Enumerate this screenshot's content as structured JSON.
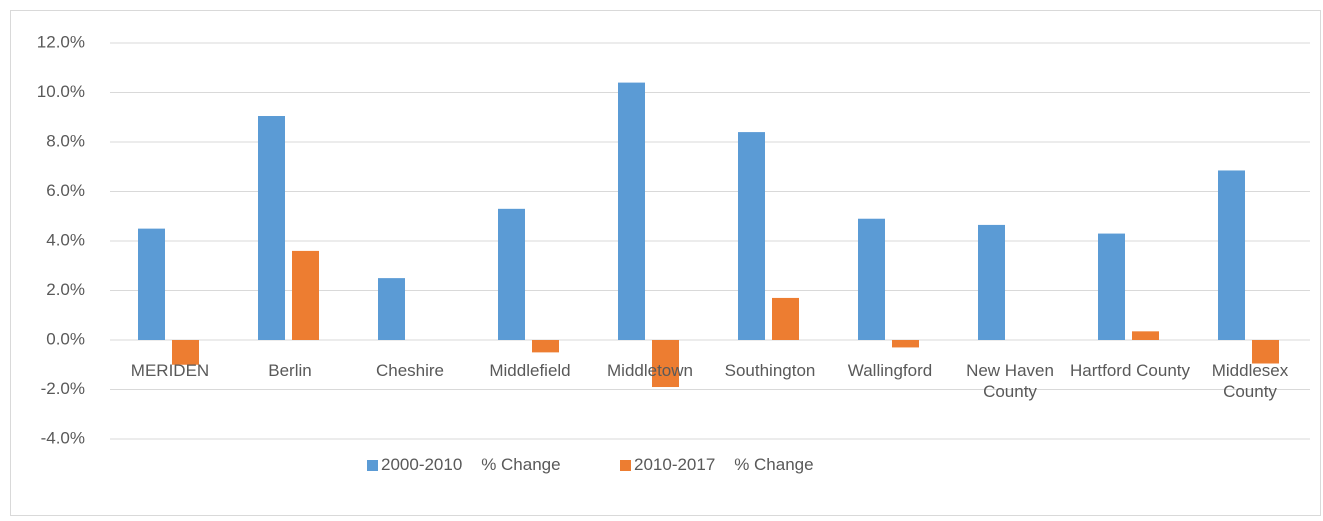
{
  "chart_data": {
    "type": "bar",
    "categories": [
      "MERIDEN",
      "Berlin",
      "Cheshire",
      "Middlefield",
      "Middletown",
      "Southington",
      "Wallingford",
      "New Haven County",
      "Hartford County",
      "Middlesex County"
    ],
    "series": [
      {
        "name": "2000-2010    % Change",
        "color": "#5b9bd5",
        "values": [
          4.5,
          9.05,
          2.5,
          5.3,
          10.4,
          8.4,
          4.9,
          4.65,
          4.3,
          6.85
        ]
      },
      {
        "name": "2010-2017    % Change",
        "color": "#ed7d31",
        "values": [
          -1.0,
          3.6,
          0,
          -0.5,
          -1.9,
          1.7,
          -0.3,
          0,
          0.35,
          -0.95
        ]
      }
    ],
    "ylim": [
      -4,
      12
    ],
    "yticks": [
      {
        "value": -4,
        "label": "-4.0%"
      },
      {
        "value": -2,
        "label": "-2.0%"
      },
      {
        "value": 0,
        "label": "0.0%"
      },
      {
        "value": 2,
        "label": "2.0%"
      },
      {
        "value": 4,
        "label": "4.0%"
      },
      {
        "value": 6,
        "label": "6.0%"
      },
      {
        "value": 8,
        "label": "8.0%"
      },
      {
        "value": 10,
        "label": "10.0%"
      },
      {
        "value": 12,
        "label": "12.0%"
      }
    ],
    "grid": true,
    "legend": "bottom"
  }
}
